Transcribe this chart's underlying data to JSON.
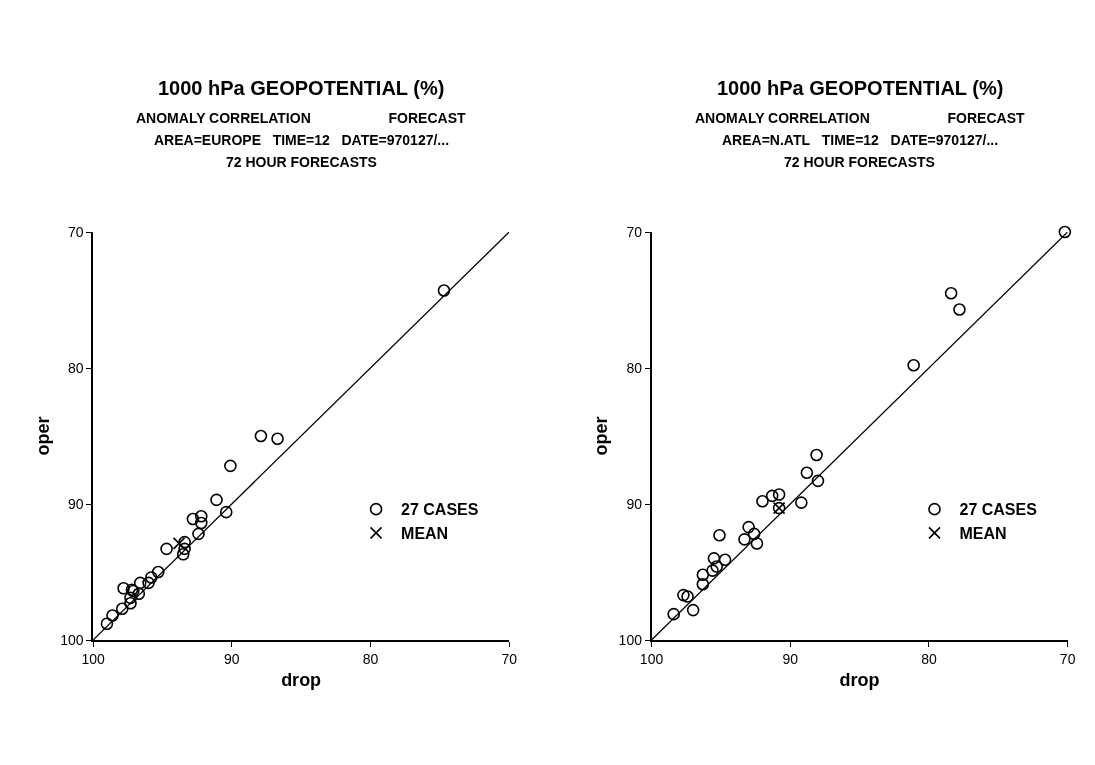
{
  "chart_data": [
    {
      "type": "scatter",
      "title": "1000 hPa GEOPOTENTIAL (%)",
      "subtitle": "ANOMALY CORRELATION                    FORECAST\nAREA=EUROPE   TIME=12   DATE=970127/...\n72 HOUR FORECASTS",
      "xlabel": "drop",
      "ylabel": "oper",
      "xlim": [
        100,
        70
      ],
      "ylim": [
        100,
        70
      ],
      "xticks": [
        100,
        90,
        80,
        70
      ],
      "yticks": [
        100,
        90,
        80,
        70
      ],
      "legend": "bottom right",
      "series": [
        {
          "name": "27 CASES",
          "marker": "circle",
          "color": "#000000",
          "x": [
            74.7,
            87.9,
            86.7,
            90.1,
            91.1,
            90.4,
            92.8,
            92.2,
            92.2,
            92.4,
            94.7,
            93.4,
            93.4,
            93.5,
            95.3,
            95.8,
            96.0,
            96.6,
            97.8,
            97.2,
            96.7,
            97.3,
            97.3,
            97.9,
            98.6,
            99.0,
            97.1
          ],
          "values": [
            74.3,
            85.0,
            85.2,
            87.2,
            89.7,
            90.6,
            91.1,
            90.9,
            91.4,
            92.2,
            93.3,
            92.8,
            93.3,
            93.7,
            95.0,
            95.4,
            95.8,
            95.8,
            96.2,
            96.3,
            96.6,
            96.9,
            97.3,
            97.7,
            98.2,
            98.8,
            96.4
          ]
        },
        {
          "name": "MEAN",
          "marker": "cross",
          "color": "#000000",
          "x": [
            93.8
          ],
          "values": [
            92.9
          ]
        },
        {
          "type": "line",
          "color": "#000000",
          "x": [
            100,
            70
          ],
          "values": [
            100,
            70
          ]
        }
      ]
    },
    {
      "type": "scatter",
      "title": "1000 hPa GEOPOTENTIAL (%)",
      "subtitle": "ANOMALY CORRELATION                    FORECAST\nAREA=N.ATL   TIME=12   DATE=970127/...\n72 HOUR FORECASTS",
      "xlabel": "drop",
      "ylabel": "oper",
      "xlim": [
        100,
        70
      ],
      "ylim": [
        100,
        70
      ],
      "xticks": [
        100,
        90,
        80,
        70
      ],
      "yticks": [
        100,
        90,
        80,
        70
      ],
      "legend": "bottom right",
      "series": [
        {
          "name": "27 CASES",
          "marker": "circle",
          "color": "#000000",
          "x": [
            78.4,
            77.8,
            81.1,
            88.1,
            88.8,
            88.0,
            89.2,
            92.0,
            91.3,
            90.8,
            90.8,
            93.0,
            92.6,
            93.3,
            92.4,
            95.1,
            94.7,
            95.5,
            95.6,
            96.3,
            96.3,
            97.7,
            97.4,
            97.0,
            98.4,
            70.2,
            95.3
          ],
          "values": [
            74.5,
            75.7,
            79.8,
            86.4,
            87.7,
            88.3,
            89.9,
            89.8,
            89.4,
            89.3,
            90.3,
            91.7,
            92.2,
            92.6,
            92.9,
            92.3,
            94.1,
            94.0,
            94.9,
            95.2,
            95.9,
            96.7,
            96.8,
            97.8,
            98.1,
            70.0,
            94.6
          ]
        },
        {
          "name": "MEAN",
          "marker": "cross",
          "color": "#000000",
          "x": [
            90.8
          ],
          "values": [
            90.3
          ]
        },
        {
          "type": "line",
          "color": "#000000",
          "x": [
            100,
            70
          ],
          "values": [
            100,
            70
          ]
        }
      ]
    }
  ]
}
